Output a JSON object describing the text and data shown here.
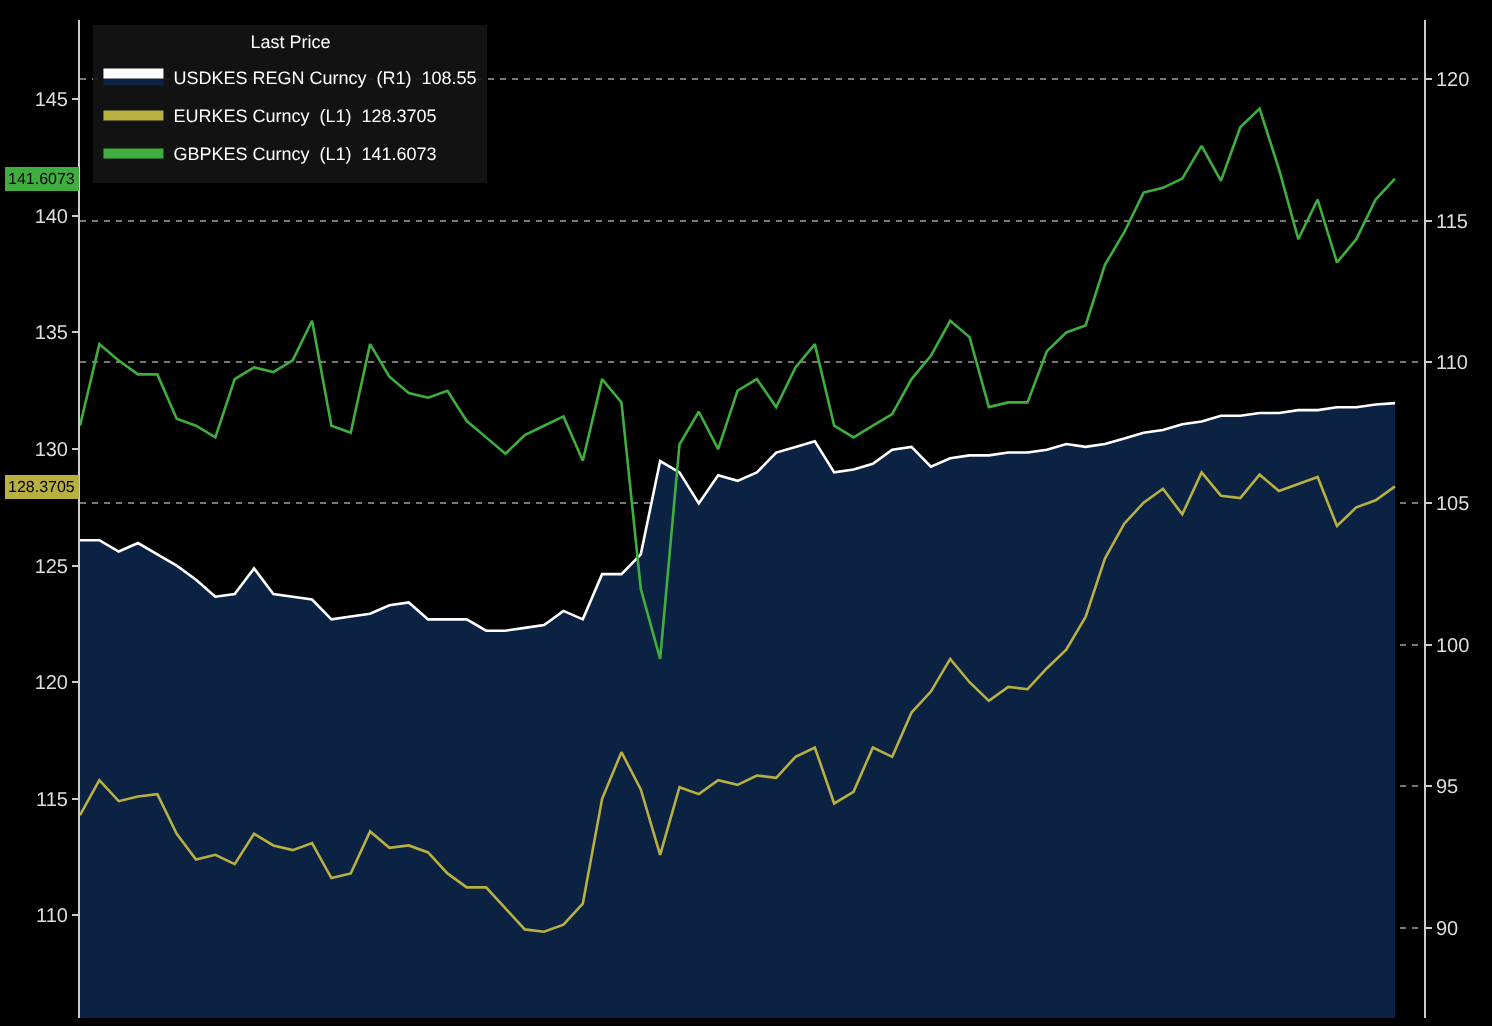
{
  "chart_data": {
    "type": "line",
    "categories": [
      null,
      null,
      null,
      null,
      null,
      null,
      null,
      null,
      null,
      null,
      null,
      null,
      null,
      null,
      null,
      null,
      null,
      null,
      null,
      null,
      null,
      null,
      null,
      null,
      null,
      null,
      null,
      null,
      null,
      null,
      null,
      null,
      null,
      null,
      null,
      null,
      null,
      null,
      null,
      null,
      null,
      null,
      null,
      null,
      null,
      null,
      null,
      null,
      null,
      null,
      null,
      null,
      null,
      null,
      null,
      null,
      null,
      null,
      null,
      null,
      null,
      null,
      null,
      null,
      null,
      null,
      null,
      null,
      null
    ],
    "legend_title": "Last Price",
    "series": [
      {
        "name": "USDKES REGN Curncy  (R1)  108.55",
        "type": "area",
        "axis": "y2",
        "color": "#ffffff",
        "values": [
          103.7,
          103.7,
          103.3,
          103.6,
          103.2,
          102.8,
          102.3,
          101.7,
          101.8,
          102.7,
          101.8,
          101.7,
          101.6,
          100.9,
          101.0,
          101.1,
          101.4,
          101.5,
          100.9,
          100.9,
          100.9,
          100.5,
          100.5,
          100.6,
          100.7,
          101.2,
          100.9,
          102.5,
          102.5,
          103.2,
          106.5,
          106.1,
          105.0,
          106.0,
          105.8,
          106.1,
          106.8,
          107.0,
          107.2,
          106.1,
          106.2,
          106.4,
          106.9,
          107.0,
          106.3,
          106.6,
          106.7,
          106.7,
          106.8,
          106.8,
          106.9,
          107.1,
          107.0,
          107.1,
          107.3,
          107.5,
          107.6,
          107.8,
          107.9,
          108.1,
          108.1,
          108.2,
          108.2,
          108.3,
          108.3,
          108.4,
          108.4,
          108.5,
          108.55
        ]
      },
      {
        "name": "EURKES Curncy  (L1)  128.3705",
        "color": "#b8b040",
        "values": [
          114.3,
          115.8,
          114.9,
          115.1,
          115.2,
          113.5,
          112.4,
          112.6,
          112.2,
          113.5,
          113.0,
          112.8,
          113.1,
          111.6,
          111.8,
          113.6,
          112.9,
          113.0,
          112.7,
          111.8,
          111.2,
          111.2,
          110.3,
          109.4,
          109.3,
          109.6,
          110.5,
          115.0,
          117.0,
          115.4,
          112.6,
          115.5,
          115.2,
          115.8,
          115.6,
          116.0,
          115.9,
          116.8,
          117.2,
          114.8,
          115.3,
          117.2,
          116.8,
          118.7,
          119.6,
          121.0,
          120.0,
          119.2,
          119.8,
          119.7,
          120.6,
          121.4,
          122.8,
          125.3,
          126.8,
          127.7,
          128.3,
          127.2,
          129.0,
          128.0,
          127.9,
          128.9,
          128.2,
          128.5,
          128.8,
          126.7,
          127.5,
          127.8,
          128.4
        ]
      },
      {
        "name": "GBPKES Curncy  (L1)  141.6073",
        "color": "#3fae3f",
        "values": [
          131.0,
          134.5,
          133.8,
          133.2,
          133.2,
          131.3,
          131.0,
          130.5,
          133.0,
          133.5,
          133.3,
          133.8,
          135.5,
          131.0,
          130.7,
          134.5,
          133.1,
          132.4,
          132.2,
          132.5,
          131.2,
          130.5,
          129.8,
          130.6,
          131.0,
          131.4,
          129.5,
          133.0,
          132.0,
          124.0,
          121.0,
          130.2,
          131.6,
          130.0,
          132.5,
          133.0,
          131.8,
          133.5,
          134.5,
          131.0,
          130.5,
          131.0,
          131.5,
          133.0,
          134.0,
          135.5,
          134.8,
          131.8,
          132.0,
          132.0,
          134.2,
          135.0,
          135.3,
          137.9,
          139.3,
          141.0,
          141.2,
          141.6,
          143.0,
          141.5,
          143.8,
          144.6,
          142.0,
          139.0,
          140.7,
          138.0,
          139.0,
          140.7,
          141.6
        ]
      }
    ],
    "ylim": [
      105.6,
      148.4
    ],
    "yticks": [
      110,
      115,
      120,
      125,
      130,
      135,
      140,
      145
    ],
    "y2lim": [
      86.8,
      122.1
    ],
    "y2ticks": [
      90,
      95,
      100,
      105,
      110,
      115,
      120
    ],
    "annotations": [
      {
        "text": "141.6073",
        "y": 141.6073
      },
      {
        "text": "128.3705",
        "y": 128.3705
      }
    ],
    "grid": "y",
    "legend": "top left",
    "tick_labels": "y"
  }
}
